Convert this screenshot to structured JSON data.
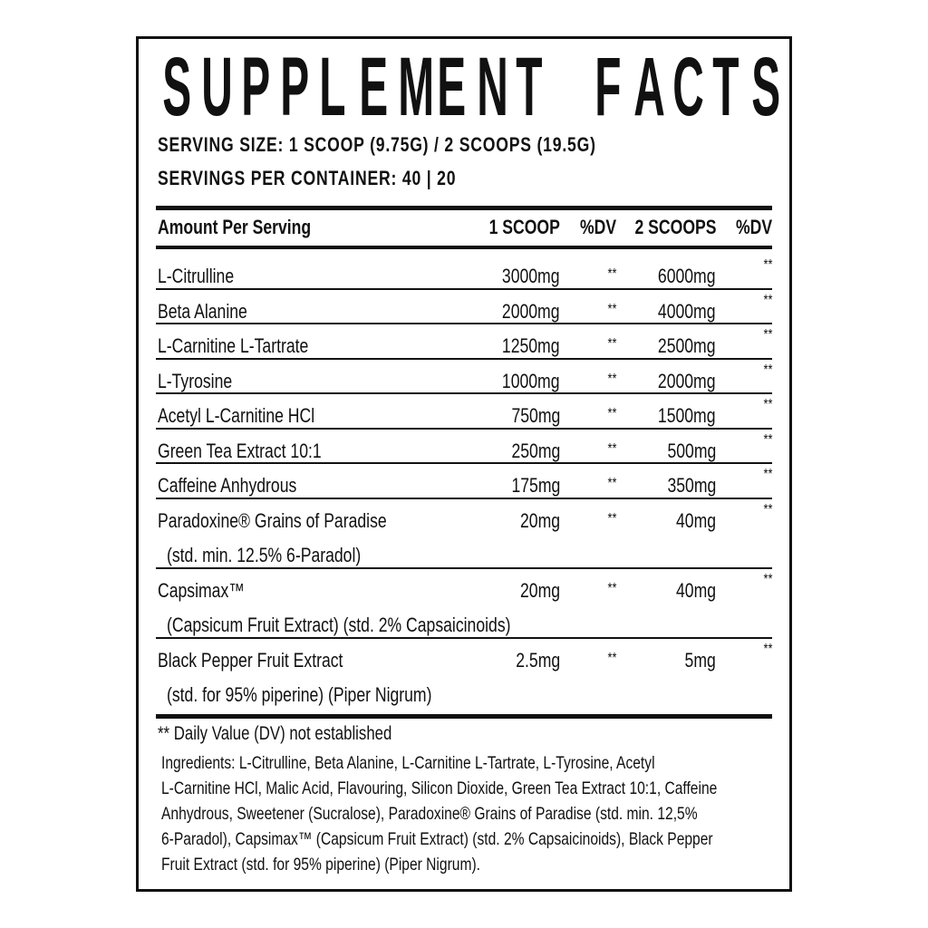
{
  "title": "SUPPLEMENT FACTS",
  "serving_size": "SERVING SIZE: 1 SCOOP (9.75G) / 2 SCOOPS (19.5G)",
  "servings_per_container": "SERVINGS PER CONTAINER: 40 | 20",
  "table": {
    "headers": [
      "Amount Per Serving",
      "1 SCOOP",
      "%DV",
      "2 SCOOPS",
      "%DV"
    ],
    "rows": [
      {
        "name": "L-Citrulline",
        "one": "3000mg",
        "dv1": "**",
        "two": "6000mg",
        "dv2": "**"
      },
      {
        "name": "Beta Alanine",
        "one": "2000mg",
        "dv1": "**",
        "two": "4000mg",
        "dv2": "**"
      },
      {
        "name": "L-Carnitine L-Tartrate",
        "one": "1250mg",
        "dv1": "**",
        "two": "2500mg",
        "dv2": "**"
      },
      {
        "name": "L-Tyrosine",
        "one": "1000mg",
        "dv1": "**",
        "two": "2000mg",
        "dv2": "**"
      },
      {
        "name": "Acetyl L-Carnitine HCl",
        "one": "750mg",
        "dv1": "**",
        "two": "1500mg",
        "dv2": "**"
      },
      {
        "name": "Green Tea Extract 10:1",
        "one": "250mg",
        "dv1": "**",
        "two": "500mg",
        "dv2": "**"
      },
      {
        "name": "Caffeine Anhydrous",
        "one": "175mg",
        "dv1": "**",
        "two": "350mg",
        "dv2": "**"
      },
      {
        "name": "Paradoxine® Grains of Paradise",
        "sub": "(std. min. 12.5% 6-Paradol)",
        "one": "20mg",
        "dv1": "**",
        "two": "40mg",
        "dv2": "**"
      },
      {
        "name": "Capsimax™",
        "sub": "(Capsicum Fruit Extract) (std. 2% Capsaicinoids)",
        "one": "20mg",
        "dv1": "**",
        "two": "40mg",
        "dv2": "**"
      },
      {
        "name": "Black Pepper Fruit Extract",
        "sub": "(std. for 95% piperine) (Piper Nigrum)",
        "one": "2.5mg",
        "dv1": "**",
        "two": "5mg",
        "dv2": "**"
      }
    ]
  },
  "footnote": "** Daily Value (DV) not established",
  "ingredients_lines": [
    "Ingredients: L-Citrulline, Beta Alanine, L-Carnitine L-Tartrate, L-Tyrosine, Acetyl",
    "L-Carnitine HCl, Malic Acid, Flavouring, Silicon Dioxide, Green Tea Extract 10:1, Caffeine",
    "Anhydrous, Sweetener (Sucralose), Paradoxine® Grains of Paradise (std. min. 12,5%",
    "6-Paradol), Capsimax™ (Capsicum Fruit Extract) (std. 2% Capsaicinoids), Black Pepper",
    "Fruit Extract (std. for 95% piperine) (Piper Nigrum)."
  ]
}
